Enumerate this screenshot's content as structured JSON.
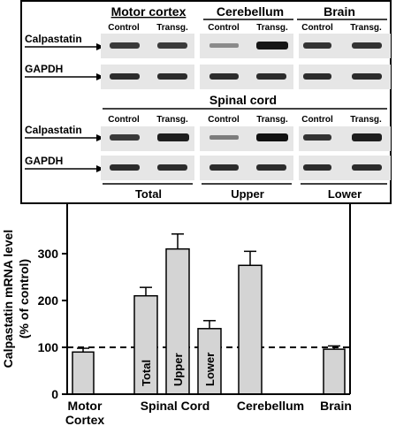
{
  "blot": {
    "top_groups": [
      {
        "title": "Motor cortex",
        "control": "Control",
        "transg": "Transg."
      },
      {
        "title": "Cerebellum",
        "control": "Control",
        "transg": "Transg."
      },
      {
        "title": "Brain",
        "control": "Control",
        "transg": "Transg."
      }
    ],
    "spinal_title": "Spinal cord",
    "spinal_groups": [
      {
        "control": "Control",
        "transg": "Transg.",
        "label": "Total"
      },
      {
        "control": "Control",
        "transg": "Transg.",
        "label": "Upper"
      },
      {
        "control": "Control",
        "transg": "Transg.",
        "label": "Lower"
      }
    ],
    "row_labels": {
      "calpastatin": "Calpastatin",
      "gapdh": "GAPDH"
    }
  },
  "chart_data": {
    "type": "bar",
    "ylabel_line1": "Calpastatin mRNA level",
    "ylabel_line2": "(% of control)",
    "ylim": [
      0,
      400
    ],
    "yticks": [
      "0",
      "100",
      "200",
      "300"
    ],
    "reference_line": 100,
    "bars": [
      {
        "category": "Motor Cortex",
        "value": 90,
        "error": 8
      },
      {
        "category": "Total",
        "value": 210,
        "error": 18
      },
      {
        "category": "Upper",
        "value": 310,
        "error": 32
      },
      {
        "category": "Lower",
        "value": 140,
        "error": 17
      },
      {
        "category": "Cerebellum",
        "value": 275,
        "error": 30
      },
      {
        "category": "Brain",
        "value": 96,
        "error": 7
      }
    ],
    "xlabels": {
      "motor_line1": "Motor",
      "motor_line2": "Cortex",
      "spinal": "Spinal Cord",
      "cerebellum": "Cerebellum",
      "brain": "Brain"
    },
    "colors": {
      "bar": "#d4d4d4",
      "axis": "#000000"
    }
  }
}
